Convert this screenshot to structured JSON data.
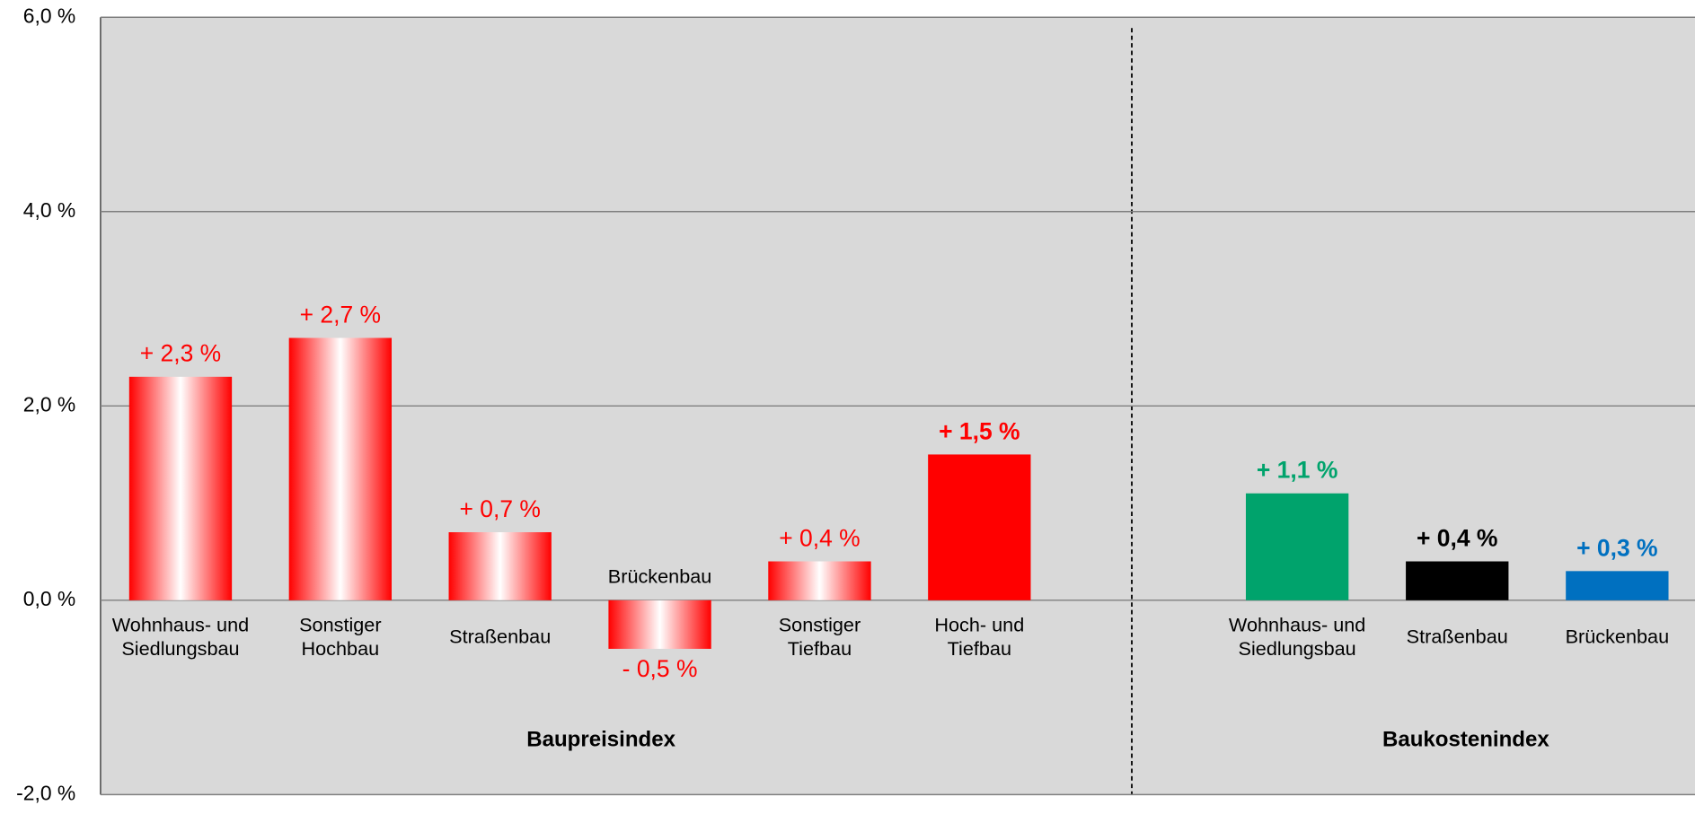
{
  "chart_data": {
    "type": "bar",
    "ylim": [
      -2,
      6
    ],
    "yticks": [
      {
        "value": -2,
        "label": "-2,0 %"
      },
      {
        "value": 0,
        "label": "0,0 %"
      },
      {
        "value": 2,
        "label": "2,0 %"
      },
      {
        "value": 4,
        "label": "4,0 %"
      },
      {
        "value": 6,
        "label": "6,0 %"
      }
    ],
    "grid": true,
    "groups": [
      {
        "name": "Baupreisindex",
        "categories": [
          [
            "Wohnhaus- und",
            "Siedlungsbau"
          ],
          [
            "Sonstiger",
            "Hochbau"
          ],
          [
            "Straßenbau"
          ],
          [
            "Brückenbau"
          ],
          [
            "Sonstiger",
            "Tiefbau"
          ],
          [
            "Hoch- und",
            "Tiefbau"
          ]
        ],
        "values": [
          2.3,
          2.7,
          0.7,
          -0.5,
          0.4,
          1.5
        ],
        "value_labels": [
          "+ 2,3 %",
          "+ 2,7 %",
          "+ 0,7 %",
          "- 0,5 %",
          "+ 0,4 %",
          "+ 1,5 %"
        ],
        "colors": [
          "#ff0000",
          "#ff0000",
          "#ff0000",
          "#ff0000",
          "#ff0000",
          "#ff0000"
        ],
        "fills": [
          "gradient",
          "gradient",
          "gradient",
          "gradient",
          "gradient",
          "solid"
        ]
      },
      {
        "name": "Baukostenindex",
        "categories": [
          [
            "Wohnhaus- und",
            "Siedlungsbau"
          ],
          [
            "Straßenbau"
          ],
          [
            "Brückenbau"
          ]
        ],
        "values": [
          1.1,
          0.4,
          0.3
        ],
        "value_labels": [
          "+ 1,1 %",
          "+ 0,4 %",
          "+ 0,3 %"
        ],
        "colors": [
          "#00a36c",
          "#000000",
          "#0070c0"
        ],
        "fills": [
          "solid",
          "solid",
          "solid"
        ]
      }
    ]
  }
}
